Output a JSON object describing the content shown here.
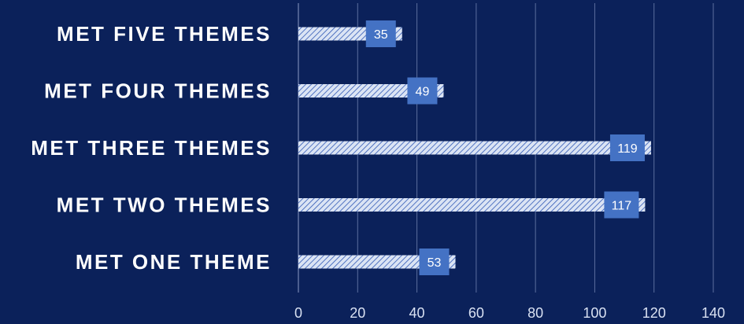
{
  "chart_data": {
    "type": "bar",
    "orientation": "horizontal",
    "categories": [
      "MET FIVE THEMES",
      "MET FOUR THEMES",
      "MET THREE THEMES",
      "MET TWO THEMES",
      "MET ONE THEME"
    ],
    "values": [
      35,
      49,
      119,
      117,
      53
    ],
    "xlim": [
      0,
      140
    ],
    "xticks": [
      0,
      20,
      40,
      60,
      80,
      100,
      120,
      140
    ],
    "grid": true,
    "colors": {
      "background": "#0b215a",
      "bar_fill": "#dbe4f4",
      "bar_hatch": "#2f58b5",
      "data_label_bg": "#4472c4",
      "gridline": "#5c6f9e"
    }
  }
}
